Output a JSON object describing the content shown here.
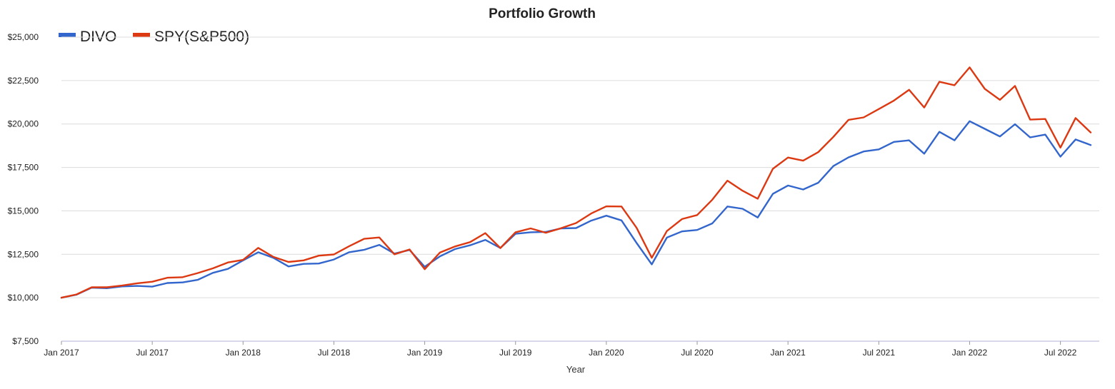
{
  "chart_data": {
    "type": "line",
    "title": "Portfolio Growth",
    "xlabel": "Year",
    "ylabel": "",
    "ylim": [
      7500,
      25000
    ],
    "y_ticks": [
      7500,
      10000,
      12500,
      15000,
      17500,
      20000,
      22500,
      25000
    ],
    "y_tick_labels": [
      "$7,500",
      "$10,000",
      "$12,500",
      "$15,000",
      "$17,500",
      "$20,000",
      "$22,500",
      "$25,000"
    ],
    "x_tick_labels": [
      "Jan 2017",
      "Jul 2017",
      "Jan 2018",
      "Jul 2018",
      "Jan 2019",
      "Jul 2019",
      "Jan 2020",
      "Jul 2020",
      "Jan 2021",
      "Jul 2021",
      "Jan 2022",
      "Jul 2022"
    ],
    "x": [
      "2017-01",
      "2017-02",
      "2017-03",
      "2017-04",
      "2017-05",
      "2017-06",
      "2017-07",
      "2017-08",
      "2017-09",
      "2017-10",
      "2017-11",
      "2017-12",
      "2018-01",
      "2018-02",
      "2018-03",
      "2018-04",
      "2018-05",
      "2018-06",
      "2018-07",
      "2018-08",
      "2018-09",
      "2018-10",
      "2018-11",
      "2018-12",
      "2019-01",
      "2019-02",
      "2019-03",
      "2019-04",
      "2019-05",
      "2019-06",
      "2019-07",
      "2019-08",
      "2019-09",
      "2019-10",
      "2019-11",
      "2019-12",
      "2020-01",
      "2020-02",
      "2020-03",
      "2020-04",
      "2020-05",
      "2020-06",
      "2020-07",
      "2020-08",
      "2020-09",
      "2020-10",
      "2020-11",
      "2020-12",
      "2021-01",
      "2021-02",
      "2021-03",
      "2021-04",
      "2021-05",
      "2021-06",
      "2021-07",
      "2021-08",
      "2021-09",
      "2021-10",
      "2021-11",
      "2021-12",
      "2022-01",
      "2022-02",
      "2022-03",
      "2022-04",
      "2022-05",
      "2022-06",
      "2022-07",
      "2022-08",
      "2022-09"
    ],
    "grid": true,
    "legend_position": "top-left",
    "series": [
      {
        "name": "DIVO",
        "color": "#3366cc",
        "values": [
          10000,
          10180,
          10580,
          10550,
          10650,
          10680,
          10640,
          10850,
          10880,
          11030,
          11430,
          11660,
          12150,
          12620,
          12300,
          11800,
          11950,
          11970,
          12200,
          12620,
          12760,
          13040,
          12540,
          12750,
          11780,
          12380,
          12800,
          13020,
          13330,
          12860,
          13680,
          13770,
          13790,
          13990,
          14010,
          14440,
          14720,
          14450,
          13150,
          11920,
          13460,
          13820,
          13900,
          14280,
          15250,
          15120,
          14620,
          15980,
          16460,
          16230,
          16620,
          17580,
          18080,
          18420,
          18540,
          18970,
          19060,
          18290,
          19550,
          19060,
          20160,
          19720,
          19280,
          19990,
          19230,
          19390,
          18120,
          19110,
          18790
        ]
      },
      {
        "name": "SPY(S&P500)",
        "color": "#dc3912",
        "values": [
          10000,
          10190,
          10600,
          10600,
          10700,
          10830,
          10920,
          11150,
          11180,
          11420,
          11690,
          12030,
          12180,
          12870,
          12350,
          12060,
          12150,
          12420,
          12490,
          12960,
          13390,
          13470,
          12500,
          12780,
          11640,
          12600,
          12950,
          13200,
          13720,
          12860,
          13770,
          13990,
          13740,
          14000,
          14300,
          14850,
          15260,
          15250,
          14020,
          12300,
          13840,
          14530,
          14760,
          15640,
          16740,
          16160,
          15700,
          17420,
          18070,
          17890,
          18380,
          19260,
          20240,
          20380,
          20860,
          21350,
          21970,
          20950,
          22430,
          22230,
          23260,
          22020,
          21390,
          22190,
          20250,
          20290,
          18640,
          20340,
          19510
        ]
      }
    ]
  }
}
